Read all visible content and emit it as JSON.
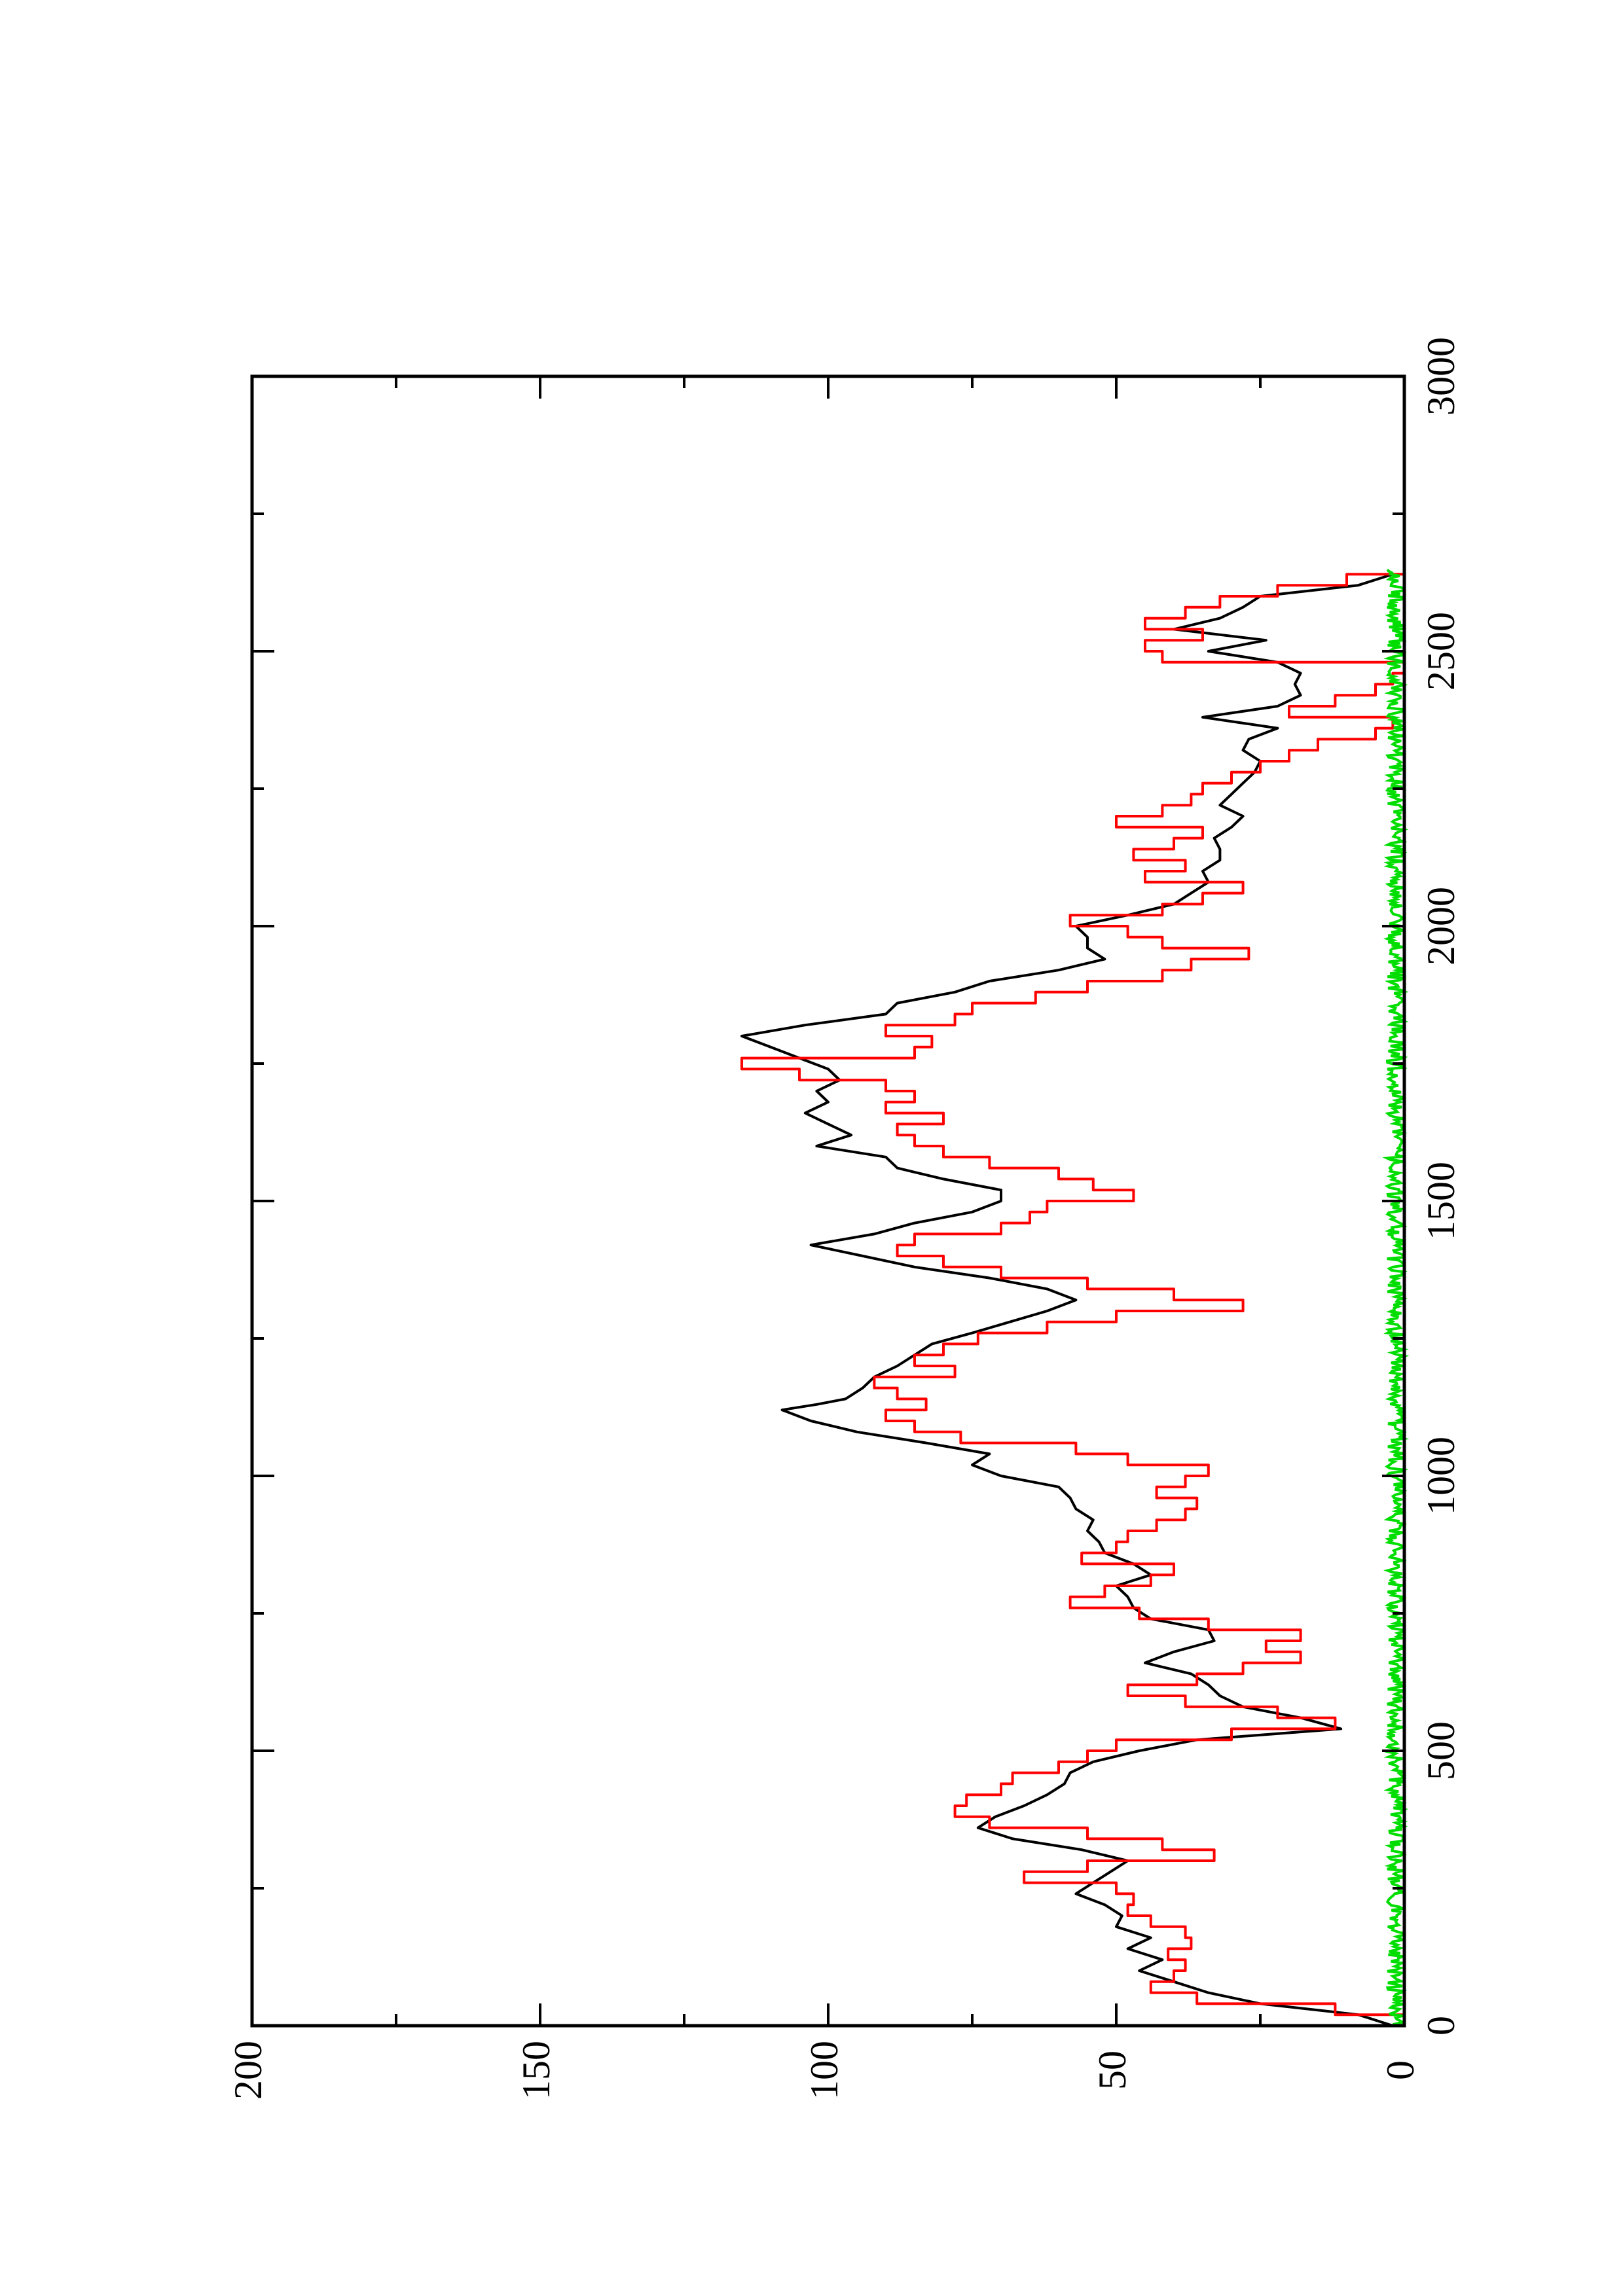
{
  "chart_data": {
    "type": "line",
    "orientation": "rotated-90-ccw",
    "title": "",
    "xlabel": "",
    "ylabel": "",
    "xlim": [
      0,
      3000
    ],
    "ylim": [
      0,
      200
    ],
    "x_ticks": [
      0,
      500,
      1000,
      1500,
      2000,
      2500,
      3000
    ],
    "x_tick_labels": [
      "0",
      "500",
      "1000",
      "1500",
      "2000",
      "2500",
      "3000"
    ],
    "y_ticks": [
      0,
      50,
      100,
      150,
      200
    ],
    "y_tick_labels": [
      "0",
      "50",
      "100",
      "150",
      "200"
    ],
    "grid": false,
    "legend": "none",
    "series": [
      {
        "color": "#000000",
        "style": "smooth",
        "points": [
          [
            0,
            2
          ],
          [
            20,
            8
          ],
          [
            40,
            25
          ],
          [
            60,
            34
          ],
          [
            80,
            40
          ],
          [
            100,
            46
          ],
          [
            120,
            42
          ],
          [
            140,
            48
          ],
          [
            160,
            44
          ],
          [
            180,
            50
          ],
          [
            200,
            49
          ],
          [
            220,
            52
          ],
          [
            240,
            57
          ],
          [
            260,
            54
          ],
          [
            280,
            51
          ],
          [
            300,
            48
          ],
          [
            320,
            56
          ],
          [
            340,
            68
          ],
          [
            360,
            74
          ],
          [
            380,
            71
          ],
          [
            400,
            66
          ],
          [
            420,
            62
          ],
          [
            440,
            59
          ],
          [
            460,
            58
          ],
          [
            480,
            54
          ],
          [
            500,
            46
          ],
          [
            520,
            36
          ],
          [
            540,
            11
          ],
          [
            560,
            18
          ],
          [
            580,
            28
          ],
          [
            600,
            32
          ],
          [
            620,
            34
          ],
          [
            640,
            37
          ],
          [
            660,
            45
          ],
          [
            680,
            40
          ],
          [
            700,
            33
          ],
          [
            720,
            34
          ],
          [
            740,
            44
          ],
          [
            760,
            47
          ],
          [
            780,
            48
          ],
          [
            800,
            50
          ],
          [
            820,
            44
          ],
          [
            840,
            47
          ],
          [
            860,
            52
          ],
          [
            880,
            53
          ],
          [
            900,
            55
          ],
          [
            920,
            54
          ],
          [
            940,
            57
          ],
          [
            960,
            58
          ],
          [
            980,
            60
          ],
          [
            1000,
            70
          ],
          [
            1020,
            75
          ],
          [
            1040,
            72
          ],
          [
            1060,
            83
          ],
          [
            1080,
            95
          ],
          [
            1100,
            103
          ],
          [
            1120,
            108
          ],
          [
            1130,
            102
          ],
          [
            1140,
            97
          ],
          [
            1160,
            94
          ],
          [
            1180,
            92
          ],
          [
            1200,
            88
          ],
          [
            1220,
            85
          ],
          [
            1240,
            82
          ],
          [
            1260,
            75
          ],
          [
            1300,
            62
          ],
          [
            1320,
            57
          ],
          [
            1340,
            62
          ],
          [
            1360,
            72
          ],
          [
            1380,
            85
          ],
          [
            1400,
            94
          ],
          [
            1420,
            103
          ],
          [
            1440,
            92
          ],
          [
            1460,
            85
          ],
          [
            1480,
            75
          ],
          [
            1500,
            70
          ],
          [
            1520,
            70
          ],
          [
            1540,
            80
          ],
          [
            1560,
            88
          ],
          [
            1580,
            90
          ],
          [
            1600,
            102
          ],
          [
            1620,
            96
          ],
          [
            1640,
            100
          ],
          [
            1660,
            104
          ],
          [
            1680,
            100
          ],
          [
            1700,
            102
          ],
          [
            1720,
            98
          ],
          [
            1740,
            100
          ],
          [
            1760,
            105
          ],
          [
            1780,
            110
          ],
          [
            1800,
            115
          ],
          [
            1820,
            104
          ],
          [
            1840,
            90
          ],
          [
            1860,
            88
          ],
          [
            1880,
            78
          ],
          [
            1900,
            72
          ],
          [
            1920,
            60
          ],
          [
            1940,
            52
          ],
          [
            1960,
            55
          ],
          [
            1980,
            55
          ],
          [
            2000,
            57
          ],
          [
            2020,
            48
          ],
          [
            2040,
            40
          ],
          [
            2060,
            37
          ],
          [
            2080,
            34
          ],
          [
            2100,
            35
          ],
          [
            2120,
            32
          ],
          [
            2140,
            32
          ],
          [
            2160,
            33
          ],
          [
            2180,
            30
          ],
          [
            2200,
            28
          ],
          [
            2220,
            32
          ],
          [
            2240,
            30
          ],
          [
            2260,
            28
          ],
          [
            2280,
            26
          ],
          [
            2300,
            25
          ],
          [
            2320,
            28
          ],
          [
            2340,
            27
          ],
          [
            2360,
            22
          ],
          [
            2380,
            35
          ],
          [
            2400,
            22
          ],
          [
            2420,
            18
          ],
          [
            2440,
            19
          ],
          [
            2460,
            18
          ],
          [
            2480,
            22
          ],
          [
            2500,
            34
          ],
          [
            2520,
            24
          ],
          [
            2540,
            40
          ],
          [
            2560,
            32
          ],
          [
            2580,
            28
          ],
          [
            2600,
            25
          ],
          [
            2620,
            8
          ],
          [
            2640,
            2
          ]
        ]
      },
      {
        "color": "#ff0000",
        "style": "step",
        "points": [
          [
            0,
            0
          ],
          [
            20,
            12
          ],
          [
            40,
            36
          ],
          [
            60,
            44
          ],
          [
            80,
            40
          ],
          [
            100,
            38
          ],
          [
            120,
            41
          ],
          [
            140,
            37
          ],
          [
            160,
            38
          ],
          [
            180,
            44
          ],
          [
            200,
            48
          ],
          [
            220,
            47
          ],
          [
            240,
            50
          ],
          [
            260,
            66
          ],
          [
            280,
            55
          ],
          [
            300,
            33
          ],
          [
            320,
            42
          ],
          [
            340,
            55
          ],
          [
            360,
            72
          ],
          [
            380,
            78
          ],
          [
            400,
            76
          ],
          [
            420,
            70
          ],
          [
            440,
            68
          ],
          [
            460,
            60
          ],
          [
            480,
            55
          ],
          [
            500,
            50
          ],
          [
            520,
            30
          ],
          [
            540,
            12
          ],
          [
            560,
            22
          ],
          [
            580,
            38
          ],
          [
            600,
            48
          ],
          [
            620,
            36
          ],
          [
            640,
            28
          ],
          [
            660,
            18
          ],
          [
            680,
            24
          ],
          [
            700,
            18
          ],
          [
            720,
            34
          ],
          [
            740,
            46
          ],
          [
            760,
            58
          ],
          [
            780,
            52
          ],
          [
            800,
            44
          ],
          [
            820,
            40
          ],
          [
            840,
            56
          ],
          [
            860,
            50
          ],
          [
            880,
            48
          ],
          [
            900,
            43
          ],
          [
            920,
            38
          ],
          [
            940,
            36
          ],
          [
            960,
            43
          ],
          [
            980,
            38
          ],
          [
            1000,
            34
          ],
          [
            1020,
            48
          ],
          [
            1040,
            57
          ],
          [
            1060,
            77
          ],
          [
            1080,
            85
          ],
          [
            1100,
            90
          ],
          [
            1120,
            83
          ],
          [
            1140,
            88
          ],
          [
            1160,
            92
          ],
          [
            1180,
            78
          ],
          [
            1200,
            85
          ],
          [
            1220,
            80
          ],
          [
            1240,
            74
          ],
          [
            1260,
            62
          ],
          [
            1280,
            50
          ],
          [
            1300,
            28
          ],
          [
            1320,
            40
          ],
          [
            1340,
            55
          ],
          [
            1360,
            70
          ],
          [
            1380,
            80
          ],
          [
            1400,
            88
          ],
          [
            1420,
            85
          ],
          [
            1440,
            70
          ],
          [
            1460,
            65
          ],
          [
            1480,
            62
          ],
          [
            1500,
            47
          ],
          [
            1520,
            54
          ],
          [
            1540,
            60
          ],
          [
            1560,
            72
          ],
          [
            1580,
            80
          ],
          [
            1600,
            85
          ],
          [
            1620,
            88
          ],
          [
            1640,
            80
          ],
          [
            1660,
            90
          ],
          [
            1680,
            85
          ],
          [
            1700,
            90
          ],
          [
            1720,
            105
          ],
          [
            1740,
            115
          ],
          [
            1760,
            85
          ],
          [
            1780,
            82
          ],
          [
            1800,
            90
          ],
          [
            1820,
            78
          ],
          [
            1840,
            75
          ],
          [
            1860,
            64
          ],
          [
            1880,
            55
          ],
          [
            1900,
            42
          ],
          [
            1920,
            37
          ],
          [
            1940,
            27
          ],
          [
            1960,
            42
          ],
          [
            1980,
            48
          ],
          [
            2000,
            58
          ],
          [
            2020,
            42
          ],
          [
            2040,
            35
          ],
          [
            2060,
            28
          ],
          [
            2080,
            45
          ],
          [
            2100,
            38
          ],
          [
            2120,
            47
          ],
          [
            2140,
            40
          ],
          [
            2160,
            35
          ],
          [
            2180,
            50
          ],
          [
            2200,
            42
          ],
          [
            2220,
            37
          ],
          [
            2240,
            35
          ],
          [
            2260,
            30
          ],
          [
            2280,
            25
          ],
          [
            2300,
            20
          ],
          [
            2320,
            15
          ],
          [
            2340,
            5
          ],
          [
            2360,
            2
          ],
          [
            2380,
            20
          ],
          [
            2400,
            12
          ],
          [
            2420,
            5
          ],
          [
            2440,
            2
          ],
          [
            2460,
            0
          ],
          [
            2480,
            42
          ],
          [
            2500,
            45
          ],
          [
            2520,
            35
          ],
          [
            2540,
            45
          ],
          [
            2560,
            38
          ],
          [
            2580,
            32
          ],
          [
            2600,
            22
          ],
          [
            2620,
            10
          ],
          [
            2640,
            0
          ]
        ]
      },
      {
        "color": "#00dd00",
        "style": "noise",
        "x_range": [
          0,
          2650
        ],
        "value_range": [
          0,
          3
        ]
      }
    ]
  }
}
